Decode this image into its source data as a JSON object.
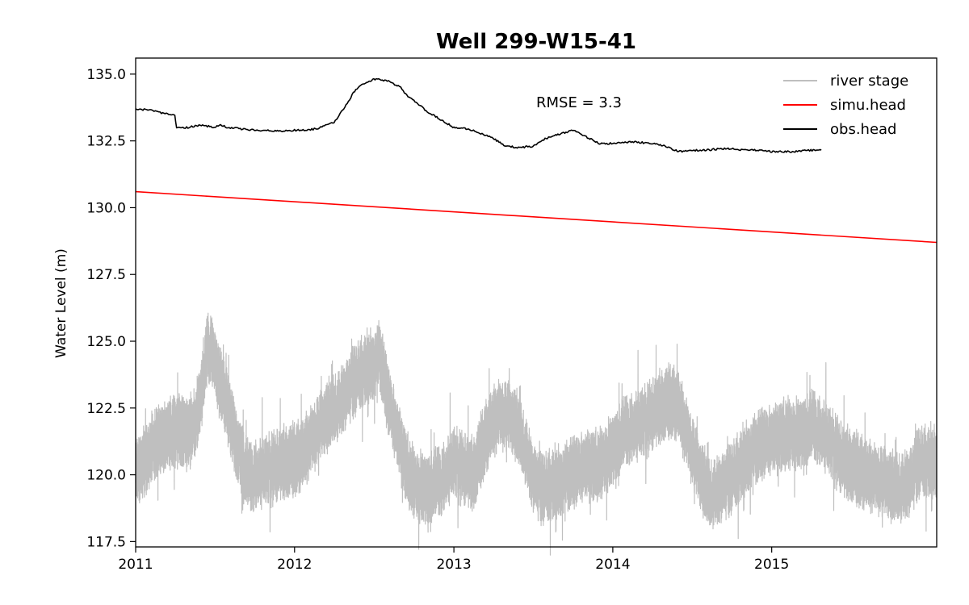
{
  "chart_data": {
    "type": "line",
    "title": "Well 299-W15-41",
    "xlabel": "",
    "ylabel": "Water Level (m)",
    "xlim": [
      "2011-01-01",
      "2016-01-15"
    ],
    "ylim": [
      117.3,
      135.6
    ],
    "x_ticks": [
      "2011",
      "2012",
      "2013",
      "2014",
      "2015"
    ],
    "y_ticks": [
      "117.5",
      "120.0",
      "122.5",
      "125.0",
      "127.5",
      "130.0",
      "132.5",
      "135.0"
    ],
    "legend_position": "top-right",
    "annotation": "RMSE = 3.3",
    "grid": false,
    "series": [
      {
        "name": "river stage",
        "color": "#bfbfbf",
        "noisy": true,
        "x": [
          "2011-01-01",
          "2011-01-20",
          "2011-02-05",
          "2011-02-25",
          "2011-03-15",
          "2011-04-05",
          "2011-04-25",
          "2011-05-15",
          "2011-06-01",
          "2011-06-15",
          "2011-06-28",
          "2011-07-10",
          "2011-07-25",
          "2011-08-15",
          "2011-09-05",
          "2011-09-20",
          "2011-10-05",
          "2011-11-01",
          "2011-12-01",
          "2011-12-31",
          "2012-01-20",
          "2012-02-15",
          "2012-03-10",
          "2012-04-01",
          "2012-04-25",
          "2012-05-15",
          "2012-06-01",
          "2012-06-15",
          "2012-07-01",
          "2012-07-15",
          "2012-08-01",
          "2012-08-20",
          "2012-09-10",
          "2012-09-25",
          "2012-10-10",
          "2012-11-01",
          "2012-12-01",
          "2013-01-01",
          "2013-01-25",
          "2013-02-15",
          "2013-03-05",
          "2013-03-25",
          "2013-04-15",
          "2013-05-05",
          "2013-05-25",
          "2013-06-15",
          "2013-07-01",
          "2013-07-20",
          "2013-08-10",
          "2013-09-01",
          "2013-09-20",
          "2013-10-10",
          "2013-11-01",
          "2013-12-01",
          "2014-01-01",
          "2014-01-25",
          "2014-02-20",
          "2014-03-15",
          "2014-04-05",
          "2014-04-25",
          "2014-05-15",
          "2014-06-01",
          "2014-06-15",
          "2014-07-01",
          "2014-07-20",
          "2014-08-10",
          "2014-09-01",
          "2014-09-25",
          "2014-10-15",
          "2014-11-10",
          "2014-12-10",
          "2015-01-10",
          "2015-02-10",
          "2015-03-10",
          "2015-04-05",
          "2015-05-01",
          "2015-05-25",
          "2015-06-15",
          "2015-07-10",
          "2015-08-10",
          "2015-09-10",
          "2015-10-05",
          "2015-10-25",
          "2015-11-15",
          "2015-12-05",
          "2016-01-15"
        ],
        "y": [
          120.2,
          120.5,
          121.0,
          121.3,
          121.5,
          121.7,
          121.5,
          121.8,
          123.0,
          124.8,
          124.5,
          123.8,
          123.0,
          121.5,
          120.3,
          119.8,
          120.0,
          120.2,
          120.4,
          120.6,
          120.8,
          121.5,
          122.0,
          122.5,
          123.0,
          123.5,
          123.8,
          124.0,
          124.2,
          124.5,
          123.0,
          121.8,
          120.5,
          119.8,
          119.6,
          119.5,
          119.7,
          120.5,
          120.2,
          120.0,
          121.0,
          121.8,
          122.3,
          122.2,
          121.8,
          121.0,
          120.0,
          119.5,
          119.6,
          119.8,
          120.0,
          120.2,
          120.4,
          120.3,
          121.0,
          121.5,
          121.8,
          122.0,
          122.3,
          122.6,
          122.8,
          122.6,
          121.8,
          121.0,
          120.0,
          119.3,
          119.5,
          119.8,
          120.2,
          120.8,
          121.2,
          121.4,
          121.5,
          121.6,
          121.8,
          121.5,
          121.0,
          120.5,
          120.3,
          120.0,
          119.8,
          119.5,
          119.6,
          119.8,
          120.5,
          120.5
        ]
      },
      {
        "name": "simu.head",
        "color": "#ff0000",
        "noisy": false,
        "x": [
          "2011-01-01",
          "2016-01-15"
        ],
        "y": [
          130.6,
          128.7
        ]
      },
      {
        "name": "obs.head",
        "color": "#000000",
        "noisy": false,
        "x": [
          "2011-01-01",
          "2011-02-01",
          "2011-03-01",
          "2011-04-01",
          "2011-04-05",
          "2011-05-01",
          "2011-06-01",
          "2011-07-01",
          "2011-07-15",
          "2011-08-01",
          "2011-09-01",
          "2011-10-01",
          "2011-11-01",
          "2011-12-01",
          "2012-01-01",
          "2012-02-01",
          "2012-03-01",
          "2012-04-01",
          "2012-05-01",
          "2012-05-15",
          "2012-06-01",
          "2012-06-15",
          "2012-07-01",
          "2012-07-15",
          "2012-08-01",
          "2012-09-01",
          "2012-09-15",
          "2012-10-01",
          "2012-11-01",
          "2012-12-01",
          "2013-01-01",
          "2013-02-01",
          "2013-03-01",
          "2013-04-01",
          "2013-05-01",
          "2013-06-01",
          "2013-07-01",
          "2013-08-01",
          "2013-08-20",
          "2013-09-10",
          "2013-10-01",
          "2013-11-01",
          "2013-11-20",
          "2013-12-01",
          "2014-01-01",
          "2014-02-01",
          "2014-03-01",
          "2014-04-01",
          "2014-05-01",
          "2014-06-01",
          "2014-07-01",
          "2014-08-01",
          "2014-09-01",
          "2014-10-01",
          "2014-11-01",
          "2014-12-01",
          "2015-01-01",
          "2015-02-01",
          "2015-03-01",
          "2015-04-01",
          "2015-04-25"
        ],
        "y": [
          133.7,
          133.65,
          133.55,
          133.45,
          133.0,
          133.0,
          133.1,
          133.0,
          133.1,
          133.0,
          132.95,
          132.9,
          132.9,
          132.85,
          132.9,
          132.9,
          133.0,
          133.2,
          133.9,
          134.3,
          134.6,
          134.7,
          134.8,
          134.8,
          134.75,
          134.5,
          134.2,
          134.0,
          133.6,
          133.3,
          133.0,
          132.95,
          132.8,
          132.6,
          132.3,
          132.25,
          132.3,
          132.6,
          132.7,
          132.8,
          132.9,
          132.65,
          132.5,
          132.4,
          132.4,
          132.45,
          132.45,
          132.4,
          132.3,
          132.1,
          132.15,
          132.15,
          132.2,
          132.2,
          132.15,
          132.15,
          132.1,
          132.1,
          132.1,
          132.15,
          132.15
        ]
      }
    ]
  }
}
